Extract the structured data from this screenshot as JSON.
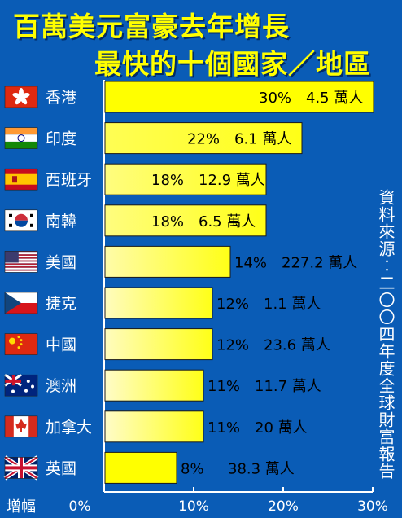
{
  "chart_data": {
    "type": "bar",
    "orientation": "horizontal",
    "title_line1": "百萬美元富豪去年增長",
    "title_line2": "最快的十個國家／地區",
    "xlabel": "增幅",
    "source": "資料來源︰二〇〇四年度全球財富報告",
    "xlim": [
      0,
      30
    ],
    "xticks": [
      0,
      10,
      20,
      30
    ],
    "xtick_labels": [
      "0%",
      "10%",
      "20%",
      "30%"
    ],
    "categories": [
      "香港",
      "印度",
      "西班牙",
      "南韓",
      "美國",
      "捷克",
      "中國",
      "澳洲",
      "加拿大",
      "英國"
    ],
    "flags": [
      "hong-kong-flag",
      "india-flag",
      "spain-flag",
      "south-korea-flag",
      "usa-flag",
      "czech-flag",
      "china-flag",
      "australia-flag",
      "canada-flag",
      "uk-flag"
    ],
    "values": [
      30,
      22,
      18,
      18,
      14,
      12,
      12,
      11,
      11,
      8
    ],
    "value_labels": [
      "30%",
      "22%",
      "18%",
      "18%",
      "14%",
      "12%",
      "12%",
      "11%",
      "11%",
      "8%"
    ],
    "millionaires": [
      "4.5 萬人",
      "6.1 萬人",
      "12.9 萬人",
      "6.5 萬人",
      "227.2 萬人",
      "1.1 萬人",
      "23.6 萬人",
      "11.7 萬人",
      "20 萬人",
      "38.3 萬人"
    ],
    "colors": {
      "background": "#0a5cb6",
      "title": "#ffff00",
      "bar_high": "#ffff00",
      "bar_low": "#fffbe8",
      "text": "#000000"
    }
  }
}
